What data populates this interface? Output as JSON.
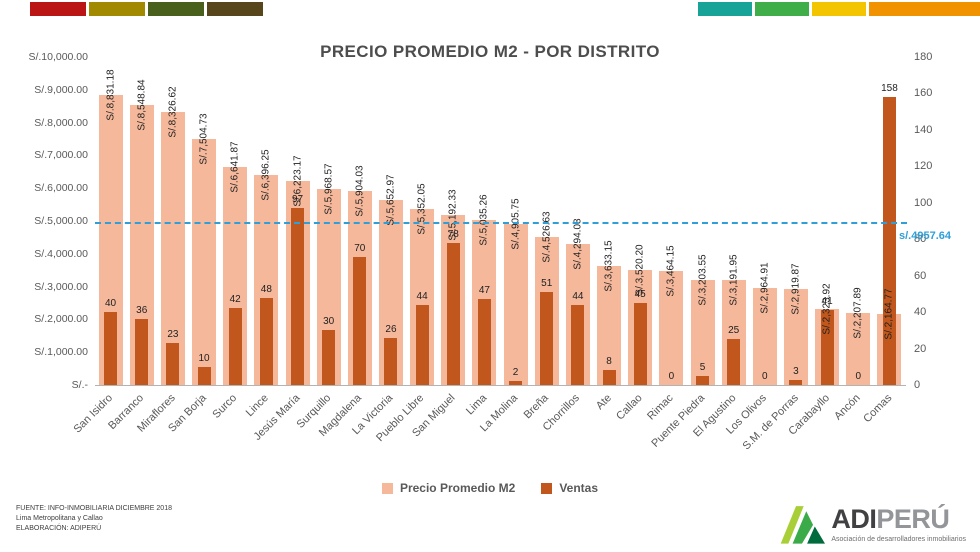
{
  "decor_strip": {
    "left_colors": [
      "#bb1414",
      "#a28a00",
      "#49601c",
      "#57461c"
    ],
    "right_colors": [
      "#17a398",
      "#3fae49",
      "#f2c500",
      "#f19300"
    ]
  },
  "chart_data": {
    "type": "bar",
    "title": "PRECIO PROMEDIO M2 - POR DISTRITO",
    "categories": [
      "San Isidro",
      "Barranco",
      "Miraflores",
      "San Borja",
      "Surco",
      "Lince",
      "Jesús María",
      "Surquillo",
      "Magdalena",
      "La Victoria",
      "Pueblo Libre",
      "San Miguel",
      "Lima",
      "La Molina",
      "Breña",
      "Chorrillos",
      "Ate",
      "Callao",
      "Rimac",
      "Puente Piedra",
      "El Agustino",
      "Los Olivos",
      "S.M. de Porras",
      "Carabayllo",
      "Ancón",
      "Comas"
    ],
    "series": [
      {
        "name": "Precio Promedio M2",
        "axis": "left",
        "color": "#f5b89b",
        "values": [
          8831.18,
          8548.84,
          8326.62,
          7504.73,
          6641.87,
          6396.25,
          6223.17,
          5968.57,
          5904.03,
          5652.97,
          5352.05,
          5192.33,
          5035.26,
          4905.75,
          4526.63,
          4294.03,
          3633.15,
          3520.2,
          3464.15,
          3203.55,
          3191.95,
          2964.91,
          2919.87,
          2323.92,
          2207.89,
          2164.77
        ]
      },
      {
        "name": "Ventas",
        "axis": "right",
        "color": "#c1571c",
        "values": [
          40,
          36,
          23,
          10,
          42,
          48,
          97,
          30,
          70,
          26,
          44,
          78,
          47,
          2,
          51,
          44,
          8,
          45,
          0,
          5,
          25,
          0,
          3,
          41,
          0,
          158
        ]
      }
    ],
    "value_labels": [
      "S/.8,831.18",
      "S/.8,548.84",
      "S/.8,326.62",
      "S/.7,504.73",
      "S/.6,641.87",
      "S/.6,396.25",
      "S/.6,223.17",
      "S/.5,968.57",
      "S/.5,904.03",
      "S/.5,652.97",
      "S/.5,352.05",
      "S/.5,192.33",
      "S/.5,035.26",
      "S/.4,905.75",
      "S/.4,526.63",
      "S/.4,294.03",
      "S/.3,633.15",
      "S/.3,520.20",
      "S/.3,464.15",
      "S/.3,203.55",
      "S/.3,191.95",
      "S/.2,964.91",
      "S/.2,919.87",
      "S/.2,323.92",
      "S/.2,207.89",
      "S/.2,164.77"
    ],
    "left_axis": {
      "min": 0,
      "max": 10000,
      "ticks": [
        "S/.10,000.00",
        "S/.9,000.00",
        "S/.8,000.00",
        "S/.7,000.00",
        "S/.6,000.00",
        "S/.5,000.00",
        "S/.4,000.00",
        "S/.3,000.00",
        "S/.2,000.00",
        "S/.1,000.00",
        "S/.-"
      ]
    },
    "right_axis": {
      "min": 0,
      "max": 180,
      "ticks": [
        180,
        160,
        140,
        120,
        100,
        80,
        60,
        40,
        20,
        0
      ]
    },
    "average_line": {
      "value": 4957.64,
      "label": "s/.4957.64",
      "color": "#2e9fd9"
    },
    "legend_position": "bottom",
    "grid": false
  },
  "footer": {
    "lines": [
      "FUENTE: INFO-INMOBILIARIA DICIEMBRE 2018",
      "Lima Metropolitana y Callao",
      "ELABORACIÓN: ADIPERÚ"
    ]
  },
  "logo": {
    "name_bold": "ADI",
    "name_light": "PERÚ",
    "subtitle": "Asociación de desarrolladores inmobiliarios"
  }
}
